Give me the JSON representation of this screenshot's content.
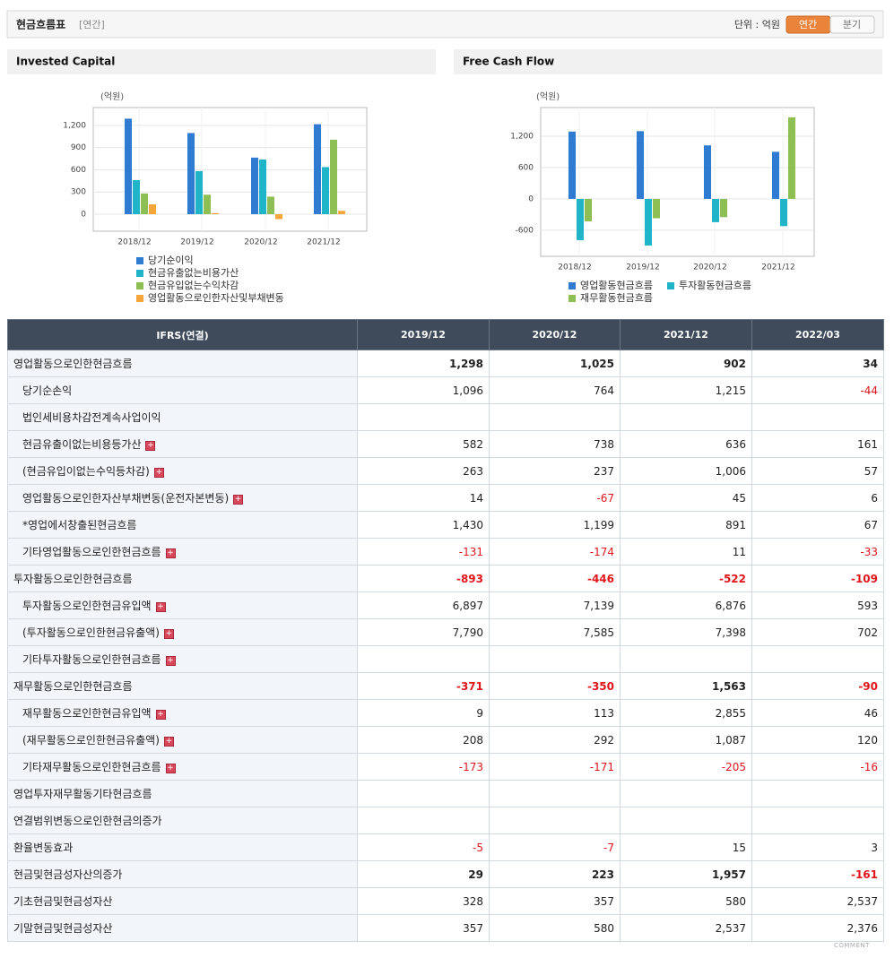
{
  "header": {
    "title": "현금흐름표",
    "period": "[연간]",
    "unit": "단위 : 억원",
    "tabs": [
      "연간",
      "분기"
    ]
  },
  "chart_data": [
    {
      "type": "bar",
      "title": "Invested Capital",
      "unit": "(억원)",
      "categories": [
        "2018/12",
        "2019/12",
        "2020/12",
        "2021/12"
      ],
      "series": [
        {
          "name": "당기순이익",
          "color": "#2f7bd1",
          "values": [
            1290,
            1096,
            764,
            1215
          ]
        },
        {
          "name": "현금유출없는비용가산",
          "color": "#1fb4c8",
          "values": [
            460,
            582,
            738,
            636
          ]
        },
        {
          "name": "현금유입없는수익차감",
          "color": "#8dbf55",
          "values": [
            280,
            263,
            237,
            1006
          ]
        },
        {
          "name": "영업활동으로인한자산및부채변동",
          "color": "#f4a63a",
          "values": [
            133,
            14,
            -67,
            45
          ]
        }
      ],
      "ylim": [
        -230,
        1440
      ],
      "yticks": [
        0,
        300,
        600,
        900,
        {
          "value": 1200,
          "label": "1,200"
        }
      ],
      "grid": true
    },
    {
      "type": "bar",
      "title": "Free Cash Flow",
      "unit": "(억원)",
      "categories": [
        "2018/12",
        "2019/12",
        "2020/12",
        "2021/12"
      ],
      "series": [
        {
          "name": "영업활동현금흐름",
          "color": "#2f7bd1",
          "values": [
            1290,
            1298,
            1025,
            902
          ]
        },
        {
          "name": "투자활동현금흐름",
          "color": "#1fb4c8",
          "values": [
            -790,
            -893,
            -446,
            -522
          ]
        },
        {
          "name": "재무활동현금흐름",
          "color": "#8dbf55",
          "values": [
            -430,
            -371,
            -350,
            1563
          ]
        }
      ],
      "ylim": [
        -1100,
        1750
      ],
      "yticks": [
        -600,
        0,
        600,
        {
          "value": 1200,
          "label": "1,200"
        }
      ],
      "grid": true
    }
  ],
  "table": {
    "header": [
      "IFRS(연결)",
      "2019/12",
      "2020/12",
      "2021/12",
      "2022/03"
    ],
    "rows": [
      {
        "label": "영업활동으로인한현금흐름",
        "values": [
          "1,298",
          "1,025",
          "902",
          "34"
        ],
        "bold": true,
        "indent": false,
        "expandable": false
      },
      {
        "label": "당기순손익",
        "values": [
          "1,096",
          "764",
          "1,215",
          "-44"
        ],
        "bold": false,
        "indent": true,
        "expandable": false
      },
      {
        "label": "법인세비용차감전계속사업이익",
        "values": [
          null,
          null,
          null,
          null
        ],
        "bold": false,
        "indent": true,
        "expandable": false
      },
      {
        "label": "현금유출이없는비용등가산",
        "values": [
          "582",
          "738",
          "636",
          "161"
        ],
        "bold": false,
        "indent": true,
        "expandable": true
      },
      {
        "label": "(현금유입이없는수익등차감)",
        "values": [
          "263",
          "237",
          "1,006",
          "57"
        ],
        "bold": false,
        "indent": true,
        "expandable": true
      },
      {
        "label": "영업활동으로인한자산부채변동(운전자본변동)",
        "values": [
          "14",
          "-67",
          "45",
          "6"
        ],
        "bold": false,
        "indent": true,
        "expandable": true
      },
      {
        "label": "*영업에서창출된현금흐름",
        "values": [
          "1,430",
          "1,199",
          "891",
          "67"
        ],
        "bold": false,
        "indent": true,
        "expandable": false
      },
      {
        "label": "기타영업활동으로인한현금흐름",
        "values": [
          "-131",
          "-174",
          "11",
          "-33"
        ],
        "bold": false,
        "indent": true,
        "expandable": true
      },
      {
        "label": "투자활동으로인한현금흐름",
        "values": [
          "-893",
          "-446",
          "-522",
          "-109"
        ],
        "bold": true,
        "indent": false,
        "expandable": false
      },
      {
        "label": "투자활동으로인한현금유입액",
        "values": [
          "6,897",
          "7,139",
          "6,876",
          "593"
        ],
        "bold": false,
        "indent": true,
        "expandable": true
      },
      {
        "label": "(투자활동으로인한현금유출액)",
        "values": [
          "7,790",
          "7,585",
          "7,398",
          "702"
        ],
        "bold": false,
        "indent": true,
        "expandable": true
      },
      {
        "label": "기타투자활동으로인한현금흐름",
        "values": [
          null,
          null,
          null,
          null
        ],
        "bold": false,
        "indent": true,
        "expandable": true
      },
      {
        "label": "재무활동으로인한현금흐름",
        "values": [
          "-371",
          "-350",
          "1,563",
          "-90"
        ],
        "bold": true,
        "indent": false,
        "expandable": false
      },
      {
        "label": "재무활동으로인한현금유입액",
        "values": [
          "9",
          "113",
          "2,855",
          "46"
        ],
        "bold": false,
        "indent": true,
        "expandable": true
      },
      {
        "label": "(재무활동으로인한현금유출액)",
        "values": [
          "208",
          "292",
          "1,087",
          "120"
        ],
        "bold": false,
        "indent": true,
        "expandable": true
      },
      {
        "label": "기타재무활동으로인한현금흐름",
        "values": [
          "-173",
          "-171",
          "-205",
          "-16"
        ],
        "bold": false,
        "indent": true,
        "expandable": true
      },
      {
        "label": "영업투자재무활동기타현금흐름",
        "values": [
          null,
          null,
          null,
          null
        ],
        "bold": false,
        "indent": false,
        "expandable": false
      },
      {
        "label": "연결범위변동으로인한현금의증가",
        "values": [
          null,
          null,
          null,
          null
        ],
        "bold": false,
        "indent": false,
        "expandable": false
      },
      {
        "label": "환율변동효과",
        "values": [
          "-5",
          "-7",
          "15",
          "3"
        ],
        "bold": false,
        "indent": false,
        "expandable": false
      },
      {
        "label": "현금및현금성자산의증가",
        "values": [
          "29",
          "223",
          "1,957",
          "-161"
        ],
        "bold": true,
        "indent": false,
        "expandable": false
      },
      {
        "label": "기초현금및현금성자산",
        "values": [
          "328",
          "357",
          "580",
          "2,537"
        ],
        "bold": false,
        "indent": false,
        "expandable": false
      },
      {
        "label": "기말현금및현금성자산",
        "values": [
          "357",
          "580",
          "2,537",
          "2,376"
        ],
        "bold": false,
        "indent": false,
        "expandable": false
      }
    ]
  },
  "footer": "COMMENT"
}
